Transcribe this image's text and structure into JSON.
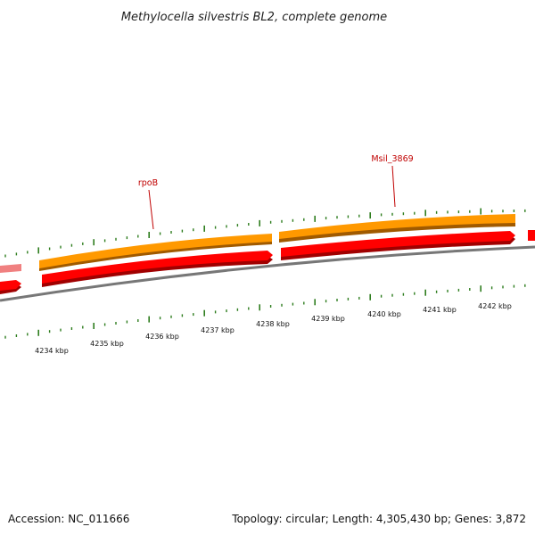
{
  "title": "Methylocella silvestris BL2, complete genome",
  "footer": {
    "accession": "Accession: NC_011666",
    "summary": "Topology: circular; Length: 4,305,430 bp; Genes: 3,872"
  },
  "genes": [
    {
      "label": "rpoB"
    },
    {
      "label": "Msil_3869"
    }
  ],
  "scale_ticks": [
    "4234 kbp",
    "4235 kbp",
    "4236 kbp",
    "4237 kbp",
    "4238 kbp",
    "4239 kbp",
    "4240 kbp",
    "4241 kbp",
    "4242 kbp"
  ],
  "colors": {
    "orange_track": "#ff9900",
    "orange_shadow": "#a05a00",
    "red_track": "#ff0000",
    "red_shadow": "#a00000",
    "backbone": "#888888",
    "ticks": "#2e7d1e",
    "label_red": "#c00000",
    "pale_red": "#f08080"
  }
}
